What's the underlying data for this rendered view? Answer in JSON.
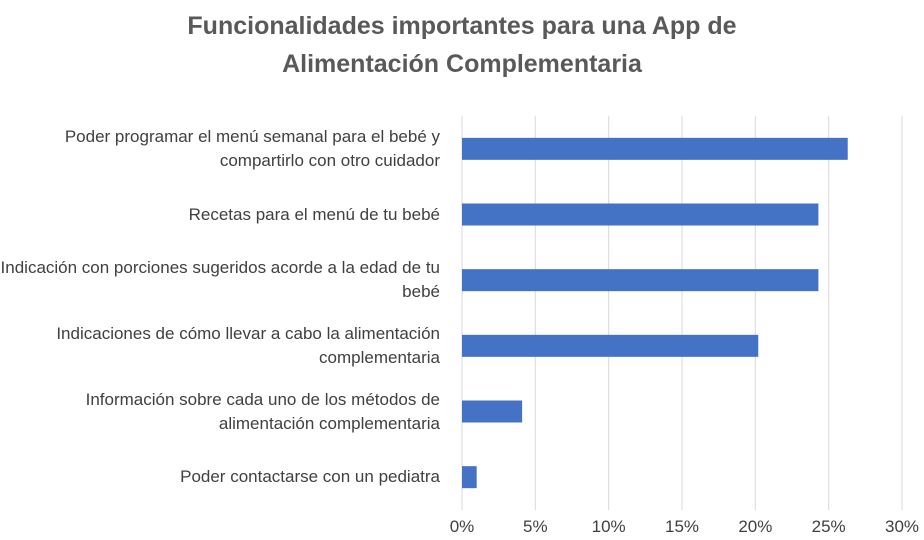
{
  "chart_data": {
    "type": "barh",
    "title": [
      "Funcionalidades importantes para una App de",
      "Alimentación Complementaria"
    ],
    "categories": [
      "Poder programar el menú semanal para el bebé y compartirlo con otro cuidador",
      "Recetas para el menú de tu bebé",
      "Indicación con porciones sugeridos acorde a la edad de tu bebé",
      "Indicaciones de cómo llevar a cabo la alimentación complementaria",
      "Información sobre cada uno de los métodos de alimentación complementaria",
      "Poder contactarse con un pediatra"
    ],
    "values": [
      26.3,
      24.3,
      24.3,
      20.2,
      4.1,
      1.0
    ],
    "color": "#4472c4",
    "xlim": [
      0,
      30
    ],
    "xticks": [
      {
        "value": 0,
        "label": "0%"
      },
      {
        "value": 5,
        "label": "5%"
      },
      {
        "value": 10,
        "label": "10%"
      },
      {
        "value": 15,
        "label": "15%"
      },
      {
        "value": 20,
        "label": "20%"
      },
      {
        "value": 25,
        "label": "25%"
      },
      {
        "value": 30,
        "label": "30%"
      }
    ],
    "grid": true
  }
}
